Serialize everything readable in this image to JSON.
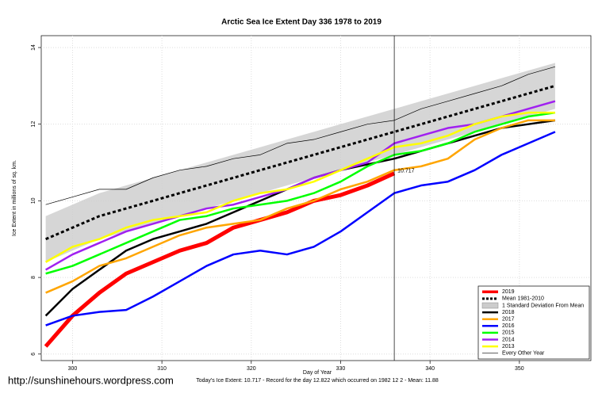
{
  "chart_data": {
    "type": "line",
    "title": "Arctic Sea Ice Extent Day 336 1978 to 2019",
    "xlabel": "Day of Year",
    "ylabel": "Ice Extent in millions of sq. km.",
    "footer": "Today's Ice Extent: 10.717  - Record for the day  12.822 which occurred on 1982 12 2  - Mean: 11.88",
    "watermark": "http://sunshinehours.wordpress.com",
    "vline": 336,
    "xlim": [
      296.5,
      358
    ],
    "xticks": [
      300,
      310,
      320,
      330,
      340,
      350
    ],
    "ylim": [
      5.83,
      14.31
    ],
    "yticks": [
      6,
      8,
      10,
      12,
      14
    ],
    "grid": true,
    "legend": "bottom-right",
    "x": [
      297,
      300,
      303,
      306,
      309,
      312,
      315,
      318,
      321,
      324,
      327,
      330,
      333,
      336,
      339,
      342,
      345,
      348,
      351,
      354
    ],
    "series": [
      {
        "name": "2019",
        "color": "#ff0000",
        "width": 5,
        "values": [
          6.2,
          7.0,
          7.6,
          8.1,
          8.4,
          8.7,
          8.9,
          9.3,
          9.5,
          9.7,
          10.0,
          10.15,
          10.4,
          10.717,
          null,
          null,
          null,
          null,
          null,
          null
        ]
      },
      {
        "name": "Mean 1981-2010",
        "color": "#000000",
        "width": 3,
        "dash": true,
        "values": [
          9.0,
          9.3,
          9.6,
          9.8,
          10.0,
          10.2,
          10.4,
          10.6,
          10.8,
          11.0,
          11.2,
          11.4,
          11.6,
          11.8,
          12.0,
          12.2,
          12.4,
          12.6,
          12.8,
          13.0
        ]
      },
      {
        "name": "1 Standard Deviation From Mean",
        "color": "#cccccc",
        "band": true,
        "upper": [
          9.6,
          9.9,
          10.2,
          10.4,
          10.6,
          10.8,
          11.0,
          11.2,
          11.4,
          11.6,
          11.8,
          12.0,
          12.2,
          12.4,
          12.6,
          12.8,
          13.0,
          13.2,
          13.4,
          13.6
        ],
        "lower": [
          8.4,
          8.7,
          9.0,
          9.2,
          9.4,
          9.6,
          9.8,
          10.0,
          10.2,
          10.4,
          10.6,
          10.8,
          11.0,
          11.2,
          11.4,
          11.6,
          11.8,
          12.0,
          12.2,
          12.4
        ]
      },
      {
        "name": "2018",
        "color": "#000000",
        "width": 2.5,
        "values": [
          7.0,
          7.7,
          8.2,
          8.7,
          9.0,
          9.2,
          9.4,
          9.7,
          10.0,
          10.3,
          10.6,
          10.8,
          10.95,
          11.1,
          11.3,
          11.5,
          11.7,
          11.9,
          12.0,
          12.1
        ]
      },
      {
        "name": "2017",
        "color": "#ffa500",
        "width": 2.5,
        "values": [
          7.6,
          7.9,
          8.3,
          8.5,
          8.8,
          9.1,
          9.3,
          9.4,
          9.5,
          9.8,
          10.0,
          10.3,
          10.5,
          10.8,
          10.9,
          11.1,
          11.6,
          11.9,
          12.1,
          12.1
        ]
      },
      {
        "name": "2016",
        "color": "#0000ff",
        "width": 2.5,
        "values": [
          6.75,
          7.0,
          7.1,
          7.15,
          7.5,
          7.9,
          8.3,
          8.6,
          8.7,
          8.6,
          8.8,
          9.2,
          9.7,
          10.2,
          10.4,
          10.5,
          10.8,
          11.2,
          11.5,
          11.8
        ]
      },
      {
        "name": "2015",
        "color": "#00ff00",
        "width": 2.5,
        "values": [
          8.1,
          8.3,
          8.6,
          8.9,
          9.2,
          9.5,
          9.6,
          9.8,
          9.9,
          10.0,
          10.2,
          10.5,
          10.9,
          11.2,
          11.3,
          11.5,
          11.8,
          12.0,
          12.2,
          12.3
        ]
      },
      {
        "name": "2014",
        "color": "#a020f0",
        "width": 2.5,
        "values": [
          8.2,
          8.6,
          8.9,
          9.2,
          9.4,
          9.6,
          9.8,
          9.9,
          10.1,
          10.3,
          10.6,
          10.8,
          11.0,
          11.5,
          11.7,
          11.9,
          12.0,
          12.2,
          12.4,
          12.6
        ]
      },
      {
        "name": "2013",
        "color": "#ffff00",
        "width": 2.5,
        "values": [
          8.4,
          8.8,
          9.0,
          9.3,
          9.5,
          9.6,
          9.7,
          10.0,
          10.2,
          10.3,
          10.5,
          10.8,
          11.1,
          11.4,
          11.5,
          11.7,
          12.0,
          12.2,
          12.3,
          12.3
        ]
      },
      {
        "name": "Every Other Year",
        "color": "#000000",
        "width": 0.7,
        "values": [
          9.9,
          10.1,
          10.3,
          10.3,
          10.6,
          10.8,
          10.9,
          11.1,
          11.2,
          11.5,
          11.6,
          11.8,
          12.0,
          12.1,
          12.4,
          12.6,
          12.8,
          13.0,
          13.3,
          13.5
        ]
      }
    ]
  }
}
